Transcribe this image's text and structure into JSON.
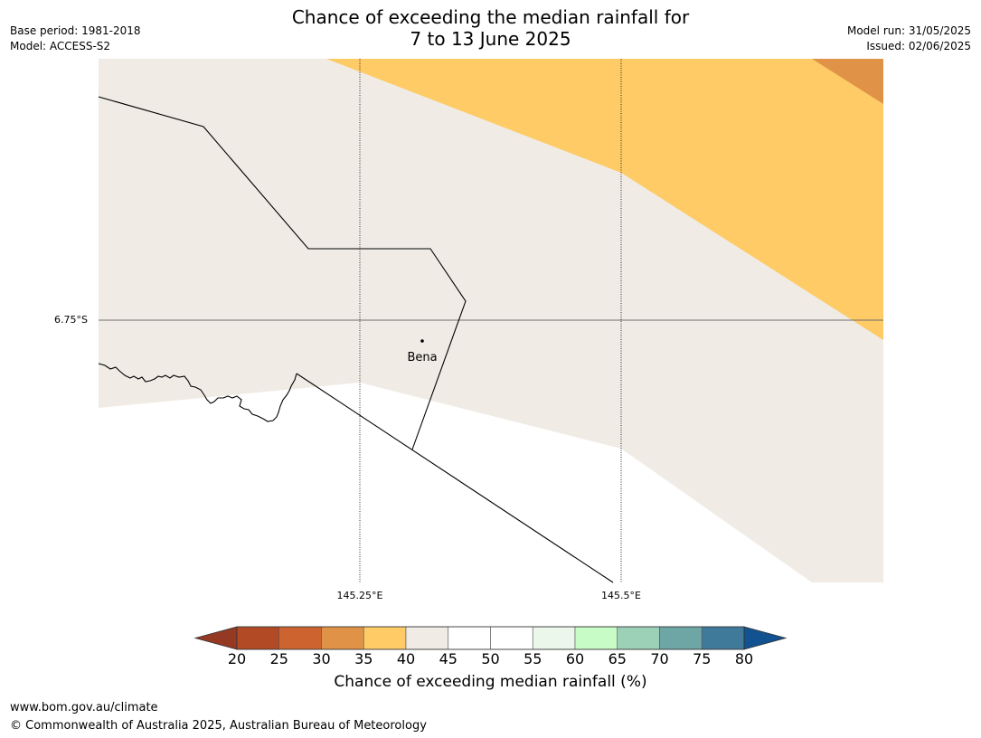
{
  "title": {
    "line1": "Chance of exceeding the median rainfall for",
    "line2": "7 to 13 June 2025"
  },
  "meta": {
    "base_period": "Base period: 1981-2018",
    "model": "Model: ACCESS-S2",
    "model_run": "Model run: 31/05/2025",
    "issued": "Issued: 02/06/2025"
  },
  "map": {
    "lat_label": "6.75°S",
    "lon_labels": [
      "145.25°E",
      "145.5°E"
    ],
    "place_label": "Bena",
    "colors": {
      "band_40_45": "#f0ebe5",
      "band_35_40": "#fecb66",
      "band_30_35": "#e09347",
      "band_45_55": "#ffffff"
    }
  },
  "colorbar": {
    "label": "Chance of exceeding median rainfall (%)",
    "ticks": [
      "20",
      "25",
      "30",
      "35",
      "40",
      "45",
      "50",
      "55",
      "60",
      "65",
      "70",
      "75",
      "80"
    ],
    "colors": [
      "#b24a26",
      "#cd642f",
      "#e09347",
      "#fecb66",
      "#f0ebe5",
      "#ffffff",
      "#ffffff",
      "#eaf7ea",
      "#c8fcc6",
      "#9dd1b7",
      "#6da6a5",
      "#3f7a9b"
    ],
    "under_color": "#953923",
    "over_color": "#135290"
  },
  "footer": {
    "url": "www.bom.gov.au/climate",
    "copyright": "© Commonwealth of Australia 2025, Australian Bureau of Meteorology"
  }
}
